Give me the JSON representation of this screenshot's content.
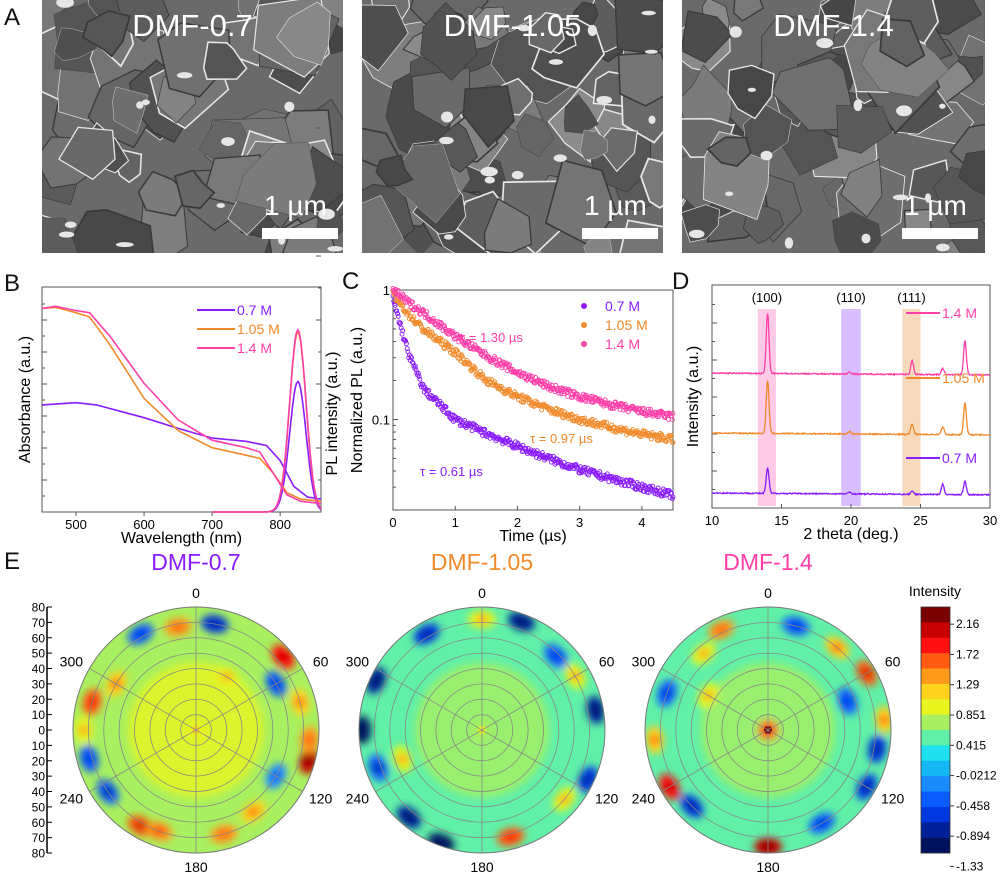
{
  "panel_labels": [
    "A",
    "B",
    "C",
    "D",
    "E"
  ],
  "sem_images": [
    {
      "title": "DMF-0.7",
      "scale_label": "1 µm"
    },
    {
      "title": "DMF-1.05",
      "scale_label": "1 µm"
    },
    {
      "title": "DMF-1.4",
      "scale_label": "1 µm"
    }
  ],
  "colors": {
    "0.7 M": "#8a1cff",
    "1.05 M": "#f08a2a",
    "1.4 M": "#ff3fa8"
  },
  "chart_data": [
    {
      "panel": "B",
      "type": "line",
      "xlabel": "Wavelength (nm)",
      "ylabel": "Absorbance (a.u.)",
      "ylabel_right": "PL intensity (a.u.)",
      "xlim": [
        450,
        860
      ],
      "xticks": [
        500,
        600,
        700,
        800
      ],
      "legend": "top-right",
      "series": [
        {
          "name": "0.7 M",
          "color": "#8a1cff",
          "absorbance": [
            [
              450,
              0.5
            ],
            [
              500,
              0.51
            ],
            [
              530,
              0.5
            ],
            [
              600,
              0.44
            ],
            [
              650,
              0.39
            ],
            [
              700,
              0.345
            ],
            [
              750,
              0.33
            ],
            [
              780,
              0.31
            ],
            [
              800,
              0.24
            ],
            [
              820,
              0.12
            ],
            [
              840,
              0.07
            ],
            [
              860,
              0.06
            ]
          ],
          "pl_peak": {
            "center": 826,
            "height": 0.58
          }
        },
        {
          "name": "1.05 M",
          "color": "#f08a2a",
          "absorbance": [
            [
              450,
              0.95
            ],
            [
              470,
              0.955
            ],
            [
              500,
              0.93
            ],
            [
              520,
              0.91
            ],
            [
              550,
              0.78
            ],
            [
              600,
              0.53
            ],
            [
              650,
              0.38
            ],
            [
              700,
              0.3
            ],
            [
              750,
              0.265
            ],
            [
              770,
              0.25
            ],
            [
              790,
              0.18
            ],
            [
              810,
              0.09
            ],
            [
              830,
              0.06
            ],
            [
              860,
              0.05
            ]
          ],
          "pl_peak": {
            "center": 826,
            "height": 0.8
          }
        },
        {
          "name": "1.4 M",
          "color": "#ff3fa8",
          "absorbance": [
            [
              450,
              0.95
            ],
            [
              470,
              0.96
            ],
            [
              500,
              0.94
            ],
            [
              520,
              0.93
            ],
            [
              550,
              0.82
            ],
            [
              600,
              0.6
            ],
            [
              650,
              0.43
            ],
            [
              700,
              0.335
            ],
            [
              750,
              0.3
            ],
            [
              770,
              0.28
            ],
            [
              790,
              0.18
            ],
            [
              810,
              0.08
            ],
            [
              830,
              0.05
            ],
            [
              860,
              0.04
            ]
          ],
          "pl_peak": {
            "center": 826,
            "height": 0.81
          }
        }
      ]
    },
    {
      "panel": "C",
      "type": "scatter",
      "xlabel": "Time (µs)",
      "ylabel": "Normalized PL (a.u.)",
      "xlim": [
        0,
        4.5
      ],
      "ylim": [
        0.02,
        1
      ],
      "yscale": "log",
      "xticks": [
        0,
        1,
        2,
        3,
        4
      ],
      "yticks": [
        {
          "v": 1,
          "label": "1"
        },
        {
          "v": 0.1,
          "label": "0.1"
        }
      ],
      "legend": "top-right",
      "series": [
        {
          "name": "0.7 M",
          "color": "#8a1cff",
          "tau_label": "τ = 0.61 µs",
          "points": [
            [
              0,
              0.85
            ],
            [
              0.25,
              0.32
            ],
            [
              0.5,
              0.17
            ],
            [
              1,
              0.1
            ],
            [
              1.5,
              0.078
            ],
            [
              2,
              0.062
            ],
            [
              2.5,
              0.05
            ],
            [
              3,
              0.041
            ],
            [
              3.5,
              0.035
            ],
            [
              4,
              0.03
            ],
            [
              4.5,
              0.026
            ]
          ]
        },
        {
          "name": "1.05 M",
          "color": "#f08a2a",
          "tau_label": "τ = 0.97 µs",
          "points": [
            [
              0,
              0.92
            ],
            [
              0.25,
              0.65
            ],
            [
              0.5,
              0.49
            ],
            [
              1,
              0.33
            ],
            [
              1.5,
              0.2
            ],
            [
              2,
              0.15
            ],
            [
              2.5,
              0.12
            ],
            [
              3,
              0.1
            ],
            [
              3.5,
              0.087
            ],
            [
              4,
              0.077
            ],
            [
              4.5,
              0.07
            ]
          ]
        },
        {
          "name": "1.4 M",
          "color": "#ff3fa8",
          "tau_label": "τ = 1.30 µs",
          "points": [
            [
              0,
              1.0
            ],
            [
              0.25,
              0.8
            ],
            [
              0.5,
              0.66
            ],
            [
              1,
              0.44
            ],
            [
              1.5,
              0.31
            ],
            [
              2,
              0.23
            ],
            [
              2.5,
              0.18
            ],
            [
              3,
              0.15
            ],
            [
              3.5,
              0.13
            ],
            [
              4,
              0.115
            ],
            [
              4.5,
              0.105
            ]
          ]
        }
      ]
    },
    {
      "panel": "D",
      "type": "line",
      "xlabel": "2 theta (deg.)",
      "ylabel": "Intensity (a.u.)",
      "xlim": [
        10,
        30
      ],
      "ylim": [
        -0.22,
        3.5
      ],
      "xticks": [
        10,
        15,
        20,
        25,
        30
      ],
      "bands": [
        {
          "label": "(100)",
          "range": [
            13.3,
            14.6
          ],
          "color": "#ffb3dc"
        },
        {
          "label": "(110)",
          "range": [
            19.3,
            20.7
          ],
          "color": "#c9a3ff"
        },
        {
          "label": "(111)",
          "range": [
            23.7,
            25.0
          ],
          "color": "#f7c9a0"
        }
      ],
      "series": [
        {
          "name": "1.4 M",
          "color": "#ff3fa8",
          "offset": 2,
          "peaks": [
            [
              14.0,
              1.0
            ],
            [
              19.9,
              0.04
            ],
            [
              24.4,
              0.23
            ],
            [
              26.6,
              0.1
            ],
            [
              28.2,
              0.57
            ]
          ]
        },
        {
          "name": "1.05 M",
          "color": "#f08a2a",
          "offset": 1,
          "peaks": [
            [
              14.0,
              0.88
            ],
            [
              19.9,
              0.04
            ],
            [
              24.4,
              0.17
            ],
            [
              26.6,
              0.13
            ],
            [
              28.2,
              0.53
            ]
          ]
        },
        {
          "name": "0.7 M",
          "color": "#8a1cff",
          "offset": 0,
          "peaks": [
            [
              14.0,
              0.42
            ],
            [
              19.9,
              0.03
            ],
            [
              24.4,
              0.06
            ],
            [
              26.6,
              0.17
            ],
            [
              28.2,
              0.22
            ]
          ]
        }
      ]
    },
    {
      "panel": "E",
      "type": "heatmap",
      "projection": "polar",
      "colorbar_title": "Intensity",
      "colorbar_ticks": [
        "2.16",
        "1.72",
        "1.29",
        "0.851",
        "0.415",
        "-0.0212",
        "-0.458",
        "-0.894",
        "-1.33"
      ],
      "colorbar_range": [
        -1.55,
        2.38
      ],
      "tilt_ticks": [
        "80",
        "70",
        "60",
        "50",
        "40",
        "30",
        "20",
        "10",
        "0",
        "10",
        "20",
        "30",
        "40",
        "50",
        "60",
        "70",
        "80"
      ],
      "angle_ticks": [
        "0",
        "60",
        "120",
        "180",
        "240",
        "300"
      ],
      "maps": [
        {
          "title": "DMF-0.7",
          "color": "#8a1cff",
          "center_value": 1.0,
          "base_value": 0.45,
          "hotspots": [
            [
              10,
              70,
              -0.9
            ],
            [
              350,
              68,
              1.2
            ],
            [
              330,
              72,
              -0.7
            ],
            [
              300,
              60,
              1.0
            ],
            [
              285,
              70,
              1.4
            ],
            [
              270,
              73,
              0.9
            ],
            [
              255,
              72,
              -0.6
            ],
            [
              235,
              70,
              -0.8
            ],
            [
              210,
              72,
              1.6
            ],
            [
              200,
              70,
              1.3
            ],
            [
              165,
              70,
              1.2
            ],
            [
              145,
              65,
              1.0
            ],
            [
              105,
              76,
              1.9
            ],
            [
              95,
              74,
              1.2
            ],
            [
              75,
              70,
              1.0
            ],
            [
              50,
              74,
              1.7
            ],
            [
              60,
              60,
              -0.6
            ],
            [
              120,
              60,
              -0.5
            ],
            [
              30,
              40,
              0.8
            ]
          ]
        },
        {
          "title": "DMF-1.05",
          "color": "#f08a2a",
          "center_value": 0.9,
          "base_value": 0.3,
          "hotspots": [
            [
              20,
              75,
              -1.2
            ],
            [
              330,
              72,
              -0.9
            ],
            [
              295,
              76,
              -1.3
            ],
            [
              270,
              78,
              -1.4
            ],
            [
              250,
              72,
              -0.8
            ],
            [
              220,
              74,
              -1.3
            ],
            [
              200,
              78,
              -1.4
            ],
            [
              165,
              72,
              1.4
            ],
            [
              130,
              70,
              0.8
            ],
            [
              115,
              76,
              -1.0
            ],
            [
              80,
              75,
              -1.1
            ],
            [
              60,
              70,
              0.9
            ],
            [
              45,
              68,
              -0.7
            ],
            [
              0,
              72,
              0.8
            ],
            [
              250,
              55,
              0.8
            ]
          ]
        },
        {
          "title": "DMF-1.4",
          "color": "#ff3fa8",
          "center_value": 2.2,
          "base_value": 0.35,
          "hotspots": [
            [
              15,
              70,
              -0.6
            ],
            [
              335,
              72,
              1.2
            ],
            [
              320,
              65,
              0.9
            ],
            [
              290,
              70,
              -0.6
            ],
            [
              265,
              74,
              1.0
            ],
            [
              240,
              74,
              1.7
            ],
            [
              225,
              70,
              -0.9
            ],
            [
              180,
              76,
              2.1
            ],
            [
              150,
              70,
              -0.7
            ],
            [
              120,
              74,
              -0.9
            ],
            [
              100,
              72,
              -1.0
            ],
            [
              85,
              76,
              1.0
            ],
            [
              60,
              74,
              1.5
            ],
            [
              40,
              70,
              1.0
            ],
            [
              70,
              55,
              -0.7
            ],
            [
              300,
              45,
              0.8
            ]
          ]
        }
      ]
    }
  ]
}
